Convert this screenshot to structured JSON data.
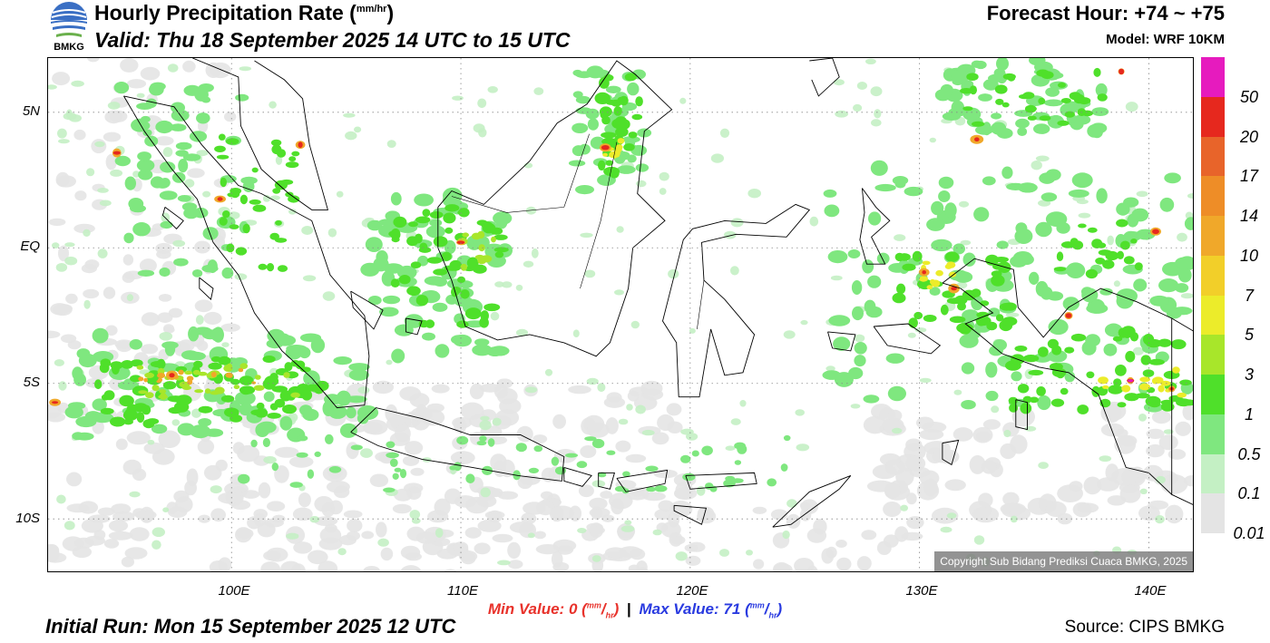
{
  "header": {
    "title": "Hourly Precipitation Rate (",
    "title_unit_num": "mm",
    "title_unit_den": "hr",
    "title_close": ")",
    "valid": "Valid: Thu 18 September 2025 14 UTC to 15 UTC",
    "forecast_hour": "Forecast Hour: +74 ~ +75",
    "model": "Model: WRF 10KM",
    "logo_text": "BMKG"
  },
  "map": {
    "lat_labels": [
      "5N",
      "EQ",
      "5S",
      "10S"
    ],
    "lon_labels": [
      "100E",
      "110E",
      "120E",
      "130E",
      "140E"
    ],
    "lon_range": [
      92,
      142
    ],
    "lat_range": [
      -12,
      7
    ],
    "copyright": "Copyright Sub Bidang Prediksi Cuaca BMKG, 2025"
  },
  "legend": {
    "levels": [
      "50",
      "20",
      "17",
      "14",
      "10",
      "7",
      "5",
      "3",
      "1",
      "0.5",
      "0.1",
      "0.01"
    ],
    "colors": [
      "#e61bbe",
      "#e6281e",
      "#e8642a",
      "#ee8d27",
      "#f0a82a",
      "#f2cf29",
      "#ecec2a",
      "#a8e62a",
      "#4fe02a",
      "#7fe77f",
      "#c4f0c4",
      "#e4e4e4"
    ]
  },
  "footer": {
    "min_label": "Min Value:",
    "min_value": "0",
    "max_label": "Max Value:",
    "max_value": "71",
    "unit_num": "mm",
    "unit_den": "hr",
    "initial_run": "Initial Run: Mon 15 September 2025 12 UTC",
    "source": "Source: CIPS BMKG"
  }
}
